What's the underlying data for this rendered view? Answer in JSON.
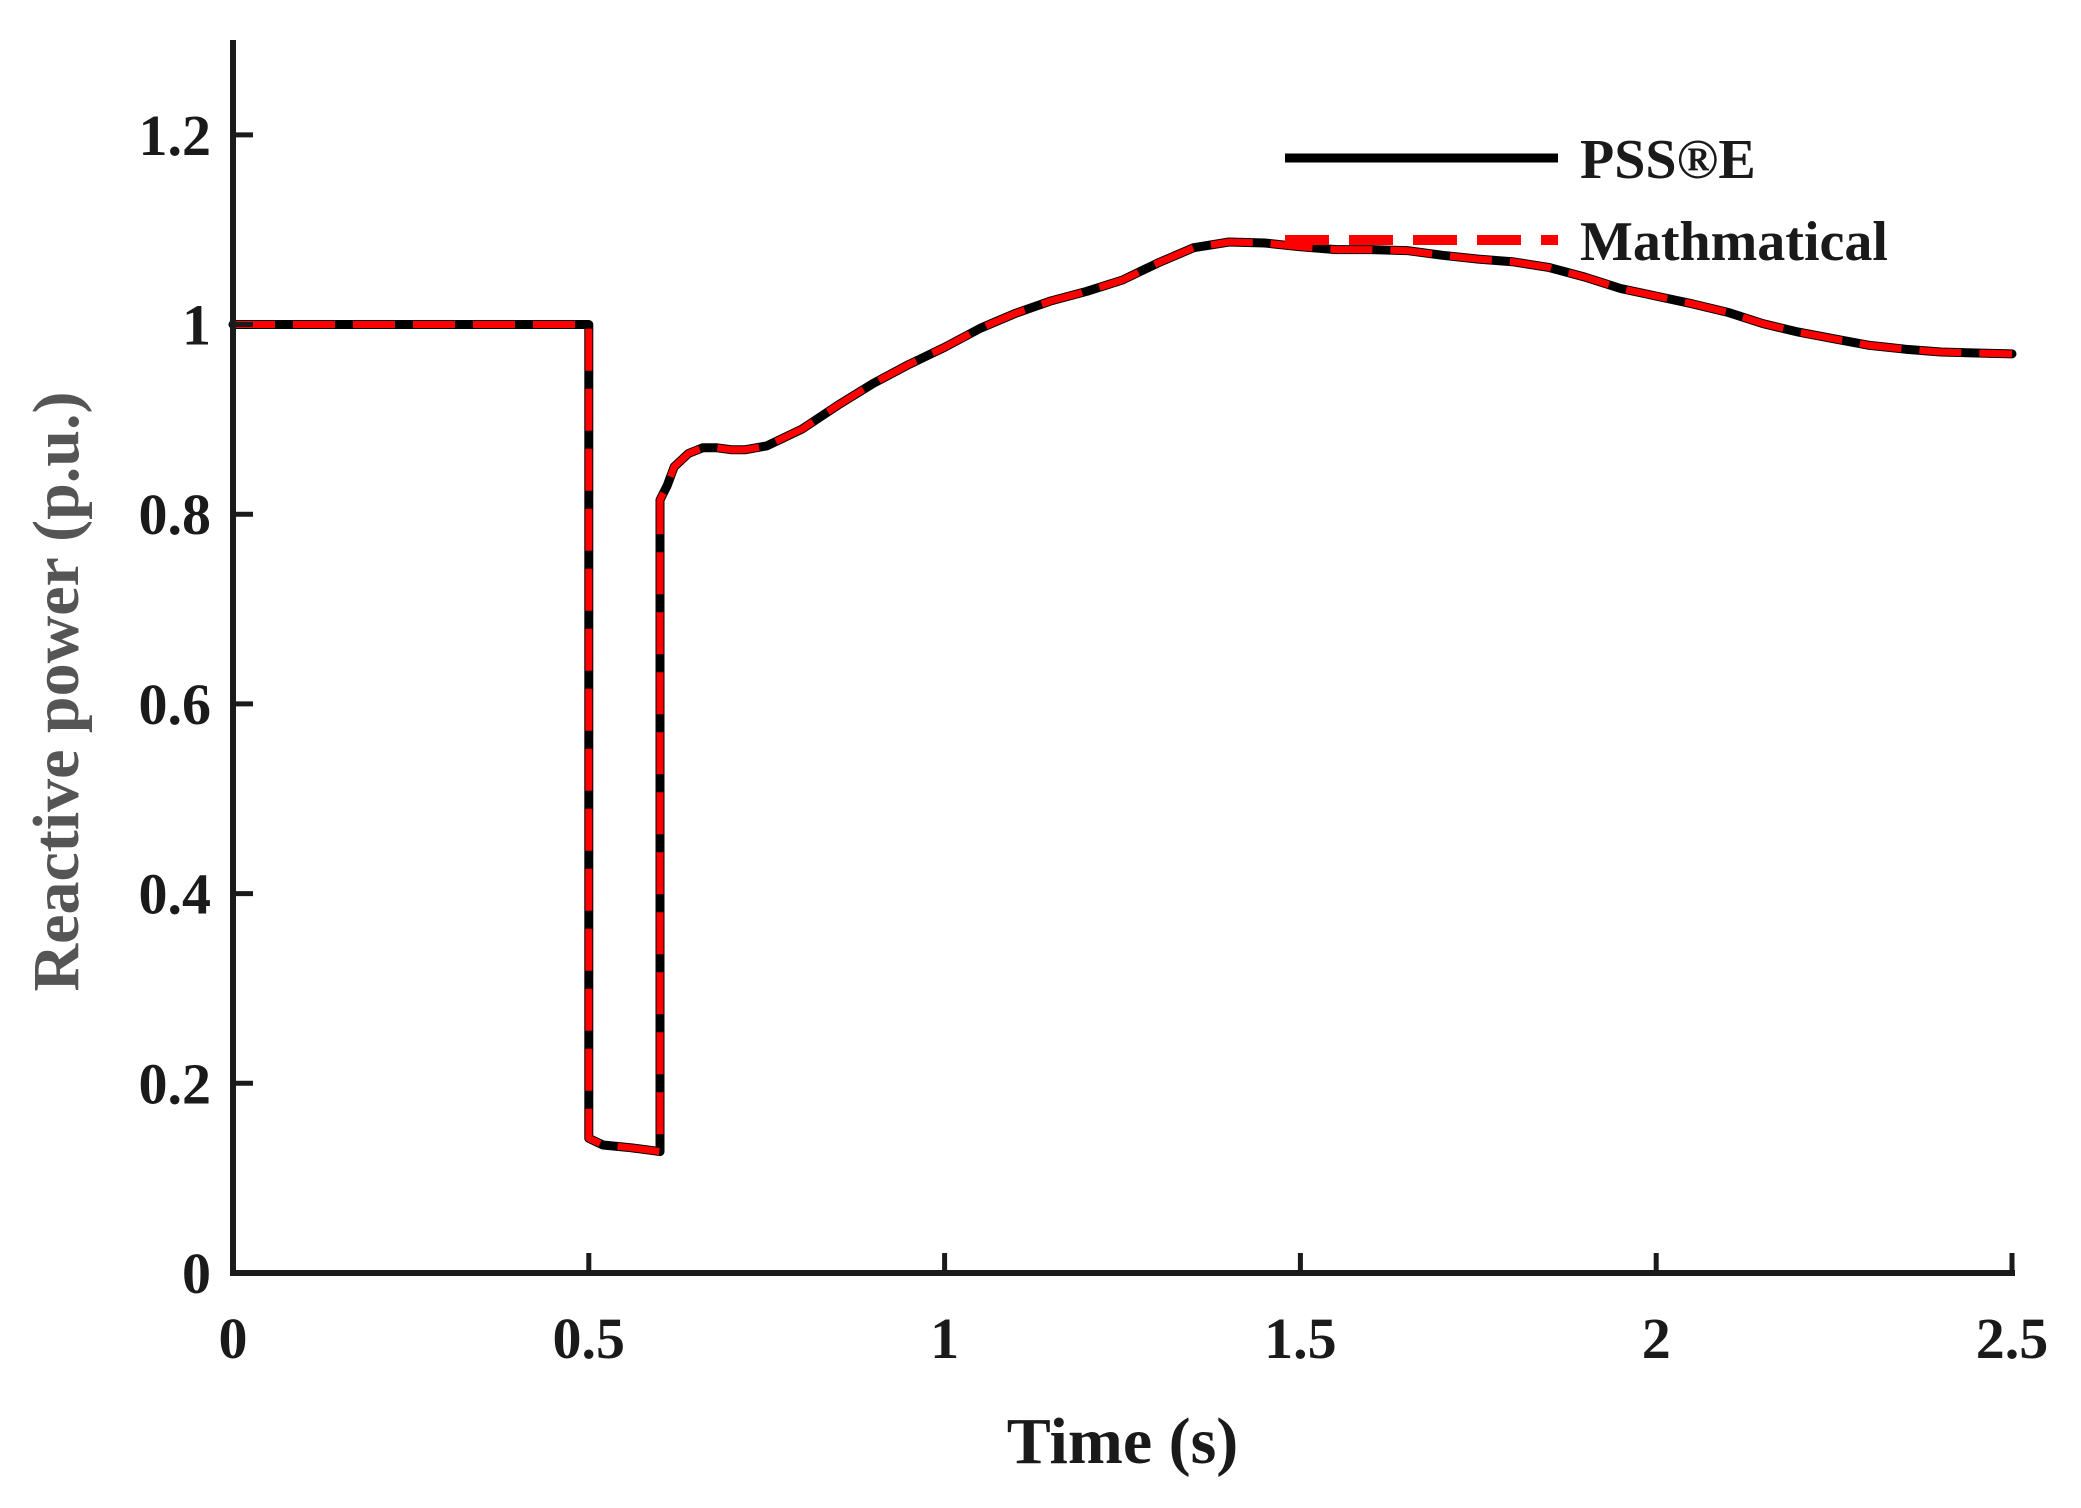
{
  "chart_data": {
    "type": "line",
    "title": "",
    "xlabel": "Time (s)",
    "ylabel": "Reactive power (p.u.)",
    "xlim": [
      0,
      2.5
    ],
    "ylim": [
      0,
      1.3
    ],
    "xticks": [
      0,
      0.5,
      1,
      1.5,
      2,
      2.5
    ],
    "xtick_labels": [
      "0",
      "0.5",
      "1",
      "1.5",
      "2",
      "2.5"
    ],
    "yticks": [
      0,
      0.2,
      0.4,
      0.6,
      0.8,
      1,
      1.2
    ],
    "ytick_labels": [
      "0",
      "0.2",
      "0.4",
      "0.6",
      "0.8",
      "1",
      "1.2"
    ],
    "grid": false,
    "legend_position": "top-right",
    "colors": {
      "axis": "#1a1a1a",
      "xlabel": "#1a1a1a",
      "ylabel": "#555555"
    },
    "series": [
      {
        "name": "PSS®E",
        "color": "#000000",
        "style": "solid",
        "x": [
          0,
          0.5,
          0.5,
          0.52,
          0.56,
          0.6,
          0.6,
          0.61,
          0.62,
          0.64,
          0.66,
          0.68,
          0.7,
          0.72,
          0.75,
          0.8,
          0.85,
          0.9,
          0.95,
          1.0,
          1.05,
          1.1,
          1.15,
          1.2,
          1.25,
          1.3,
          1.35,
          1.4,
          1.45,
          1.5,
          1.55,
          1.6,
          1.65,
          1.7,
          1.75,
          1.8,
          1.85,
          1.9,
          1.95,
          2.0,
          2.05,
          2.1,
          2.15,
          2.2,
          2.25,
          2.3,
          2.35,
          2.4,
          2.45,
          2.5
        ],
        "y": [
          1.0,
          1.0,
          0.142,
          0.135,
          0.132,
          0.128,
          0.815,
          0.83,
          0.85,
          0.864,
          0.87,
          0.87,
          0.868,
          0.868,
          0.872,
          0.89,
          0.915,
          0.938,
          0.958,
          0.976,
          0.996,
          1.012,
          1.025,
          1.035,
          1.047,
          1.065,
          1.081,
          1.087,
          1.086,
          1.082,
          1.079,
          1.079,
          1.078,
          1.073,
          1.069,
          1.066,
          1.06,
          1.05,
          1.038,
          1.03,
          1.022,
          1.013,
          1.001,
          0.992,
          0.985,
          0.978,
          0.974,
          0.971,
          0.97,
          0.969
        ]
      },
      {
        "name": "Mathmatical",
        "color": "#ff0000",
        "style": "dashed",
        "x": [
          0,
          0.5,
          0.5,
          0.52,
          0.56,
          0.6,
          0.6,
          0.61,
          0.62,
          0.64,
          0.66,
          0.68,
          0.7,
          0.72,
          0.75,
          0.8,
          0.85,
          0.9,
          0.95,
          1.0,
          1.05,
          1.1,
          1.15,
          1.2,
          1.25,
          1.3,
          1.35,
          1.4,
          1.45,
          1.5,
          1.55,
          1.6,
          1.65,
          1.7,
          1.75,
          1.8,
          1.85,
          1.9,
          1.95,
          2.0,
          2.05,
          2.1,
          2.15,
          2.2,
          2.25,
          2.3,
          2.35,
          2.4,
          2.45,
          2.5
        ],
        "y": [
          1.0,
          1.0,
          0.142,
          0.135,
          0.132,
          0.128,
          0.815,
          0.83,
          0.85,
          0.864,
          0.87,
          0.87,
          0.868,
          0.868,
          0.872,
          0.89,
          0.915,
          0.938,
          0.958,
          0.976,
          0.996,
          1.012,
          1.025,
          1.035,
          1.047,
          1.065,
          1.081,
          1.087,
          1.086,
          1.082,
          1.079,
          1.079,
          1.078,
          1.073,
          1.069,
          1.066,
          1.06,
          1.05,
          1.038,
          1.03,
          1.022,
          1.013,
          1.001,
          0.992,
          0.985,
          0.978,
          0.974,
          0.971,
          0.97,
          0.969
        ]
      }
    ]
  }
}
